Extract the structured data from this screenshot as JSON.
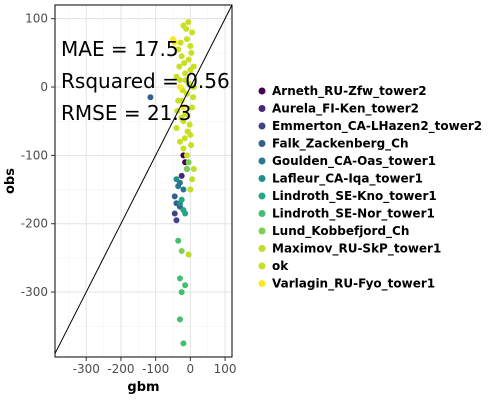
{
  "chart_data": {
    "type": "scatter",
    "xlabel": "gbm",
    "ylabel": "obs",
    "xlim": [
      -390,
      120
    ],
    "ylim": [
      -395,
      120
    ],
    "x_ticks": [
      -300,
      -200,
      -100,
      0,
      100
    ],
    "y_ticks": [
      100,
      0,
      -100,
      -200,
      -300
    ],
    "grid": true,
    "reference_line": "y = x",
    "annotations": [
      "MAE = 17.5",
      "Rsquared = 0.56",
      "RMSE = 21.3"
    ],
    "legend_position": "right",
    "series": [
      {
        "name": "Arneth_RU-Zfw_tower2",
        "color": "#440154",
        "points": [
          [
            -20,
            -100
          ],
          [
            -15,
            -110
          ]
        ]
      },
      {
        "name": "Aurela_FI-Ken_tower2",
        "color": "#482576",
        "points": [
          [
            -25,
            -130
          ],
          [
            -10,
            -120
          ]
        ]
      },
      {
        "name": "Emmerton_CA-LHazen2_tower2",
        "color": "#414487",
        "points": [
          [
            -45,
            -185
          ],
          [
            -40,
            -195
          ]
        ]
      },
      {
        "name": "Falk_Zackenberg_Ch",
        "color": "#35608D",
        "points": [
          [
            -115,
            -15
          ],
          [
            -45,
            -160
          ],
          [
            -40,
            -170
          ],
          [
            -30,
            -175
          ]
        ]
      },
      {
        "name": "Goulden_CA-Oas_tower1",
        "color": "#2A788E",
        "points": [
          [
            -35,
            -145
          ],
          [
            -30,
            -140
          ],
          [
            -20,
            -150
          ]
        ]
      },
      {
        "name": "Lafleur_CA-Iqa_tower1",
        "color": "#21908C",
        "points": [
          [
            -40,
            -135
          ],
          [
            -30,
            -170
          ]
        ]
      },
      {
        "name": "Lindroth_SE-Kno_tower1",
        "color": "#22A884",
        "points": [
          [
            -25,
            -165
          ],
          [
            -20,
            -180
          ],
          [
            -15,
            -185
          ]
        ]
      },
      {
        "name": "Lindroth_SE-Nor_tower1",
        "color": "#43BF71",
        "points": [
          [
            -35,
            -225
          ],
          [
            -30,
            -280
          ],
          [
            -25,
            -300
          ],
          [
            -30,
            -340
          ],
          [
            -20,
            -375
          ],
          [
            -15,
            -290
          ]
        ]
      },
      {
        "name": "Lund_Kobbefjord_Ch",
        "color": "#7AD151",
        "points": [
          [
            -25,
            -240
          ],
          [
            -10,
            -120
          ],
          [
            -5,
            -110
          ]
        ]
      },
      {
        "name": "Maximov_RU-SkP_tower1",
        "color": "#BBDF27",
        "points": [
          [
            -5,
            -245
          ],
          [
            0,
            -150
          ],
          [
            10,
            -120
          ],
          [
            5,
            -135
          ]
        ]
      },
      {
        "name": "ok",
        "color": "#C8E020",
        "points": [
          [
            -35,
            55
          ],
          [
            -30,
            10
          ],
          [
            -25,
            -20
          ],
          [
            -20,
            -50
          ],
          [
            -15,
            20
          ],
          [
            -10,
            -10
          ],
          [
            -5,
            40
          ],
          [
            0,
            60
          ],
          [
            5,
            -30
          ],
          [
            10,
            0
          ],
          [
            -40,
            -60
          ],
          [
            -30,
            -80
          ],
          [
            -20,
            90
          ],
          [
            -10,
            70
          ],
          [
            0,
            -70
          ],
          [
            5,
            80
          ],
          [
            -25,
            45
          ],
          [
            -15,
            -40
          ],
          [
            -5,
            5
          ],
          [
            10,
            30
          ],
          [
            -35,
            -20
          ],
          [
            -40,
            15
          ],
          [
            -20,
            -90
          ],
          [
            -10,
            -100
          ],
          [
            0,
            25
          ],
          [
            -28,
            65
          ],
          [
            -12,
            85
          ],
          [
            -2,
            -55
          ],
          [
            8,
            -15
          ],
          [
            -18,
            35
          ],
          [
            -38,
            -35
          ],
          [
            -22,
            -5
          ],
          [
            -8,
            -65
          ],
          [
            3,
            50
          ],
          [
            -32,
            30
          ],
          [
            -16,
            -75
          ],
          [
            -6,
            95
          ],
          [
            -26,
            -45
          ],
          [
            -14,
            10
          ],
          [
            2,
            -85
          ]
        ]
      },
      {
        "name": "Varlagin_RU-Fyo_tower1",
        "color": "#FDE725",
        "points": [
          [
            -50,
            70
          ],
          [
            -45,
            65
          ],
          [
            -30,
            0
          ],
          [
            -20,
            -30
          ]
        ]
      }
    ]
  }
}
